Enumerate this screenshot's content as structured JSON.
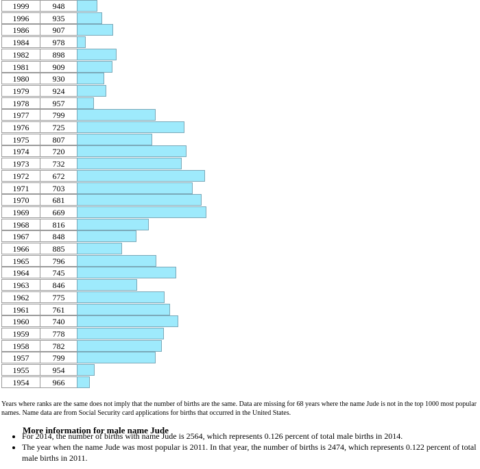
{
  "table": {
    "rows": [
      [
        1999,
        948
      ],
      [
        1996,
        935
      ],
      [
        1986,
        907
      ],
      [
        1984,
        978
      ],
      [
        1982,
        898
      ],
      [
        1981,
        909
      ],
      [
        1980,
        930
      ],
      [
        1979,
        924
      ],
      [
        1978,
        957
      ],
      [
        1977,
        799
      ],
      [
        1976,
        725
      ],
      [
        1975,
        807
      ],
      [
        1974,
        720
      ],
      [
        1973,
        732
      ],
      [
        1972,
        672
      ],
      [
        1971,
        703
      ],
      [
        1970,
        681
      ],
      [
        1969,
        669
      ],
      [
        1968,
        816
      ],
      [
        1967,
        848
      ],
      [
        1966,
        885
      ],
      [
        1965,
        796
      ],
      [
        1964,
        745
      ],
      [
        1963,
        846
      ],
      [
        1962,
        775
      ],
      [
        1961,
        761
      ],
      [
        1960,
        740
      ],
      [
        1959,
        778
      ],
      [
        1958,
        782
      ],
      [
        1957,
        799
      ],
      [
        1955,
        954
      ],
      [
        1954,
        966
      ]
    ]
  },
  "note": "Years where ranks are the same does not imply that the number of births are the same. Data are missing for 68 years where the name Jude is not in the top 1000 most popular names. Name data are from Social Security card applications for births that occurred in the United States.",
  "info": {
    "title": "More information for male name Jude",
    "items": [
      "For 2014, the number of births with name Jude is 2564, which represents 0.126 percent of total male births in 2014.",
      "The year when the name Jude was most popular is 2011. In that year, the number of births is 2474, which represents 0.122 percent of total male births in 2011."
    ]
  }
}
